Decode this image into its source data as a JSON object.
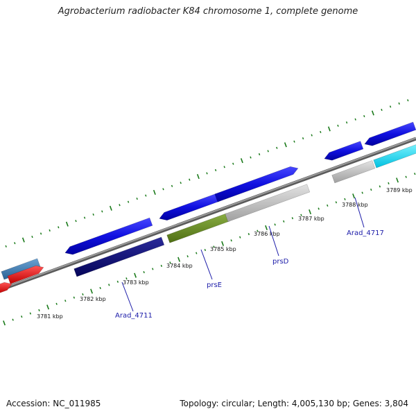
{
  "title": "Agrobacterium radiobacter K84 chromosome 1, complete genome",
  "footer": {
    "accession": "Accession: NC_011985",
    "summary": "Topology: circular; Length: 4,005,130 bp; Genes: 3,804"
  },
  "colors": {
    "backbone": "#808080",
    "tick": "#1a7a1a",
    "blue": "#1010e0",
    "navy": "#0a0a7a",
    "olive": "#6a8e23",
    "grey": "#c0c0c0",
    "cyan": "#00e5ff",
    "red": "#ee1111",
    "steel": "#4682b4",
    "label": "#1a1aa8"
  },
  "kbp_labels": [
    "3781 kbp",
    "3782 kbp",
    "3783 kbp",
    "3784 kbp",
    "3785 kbp",
    "3786 kbp",
    "3787 kbp",
    "3788 kbp",
    "3789 kbp"
  ],
  "gene_labels": [
    "Arad_4711",
    "prsE",
    "prsD",
    "Arad_4717"
  ]
}
